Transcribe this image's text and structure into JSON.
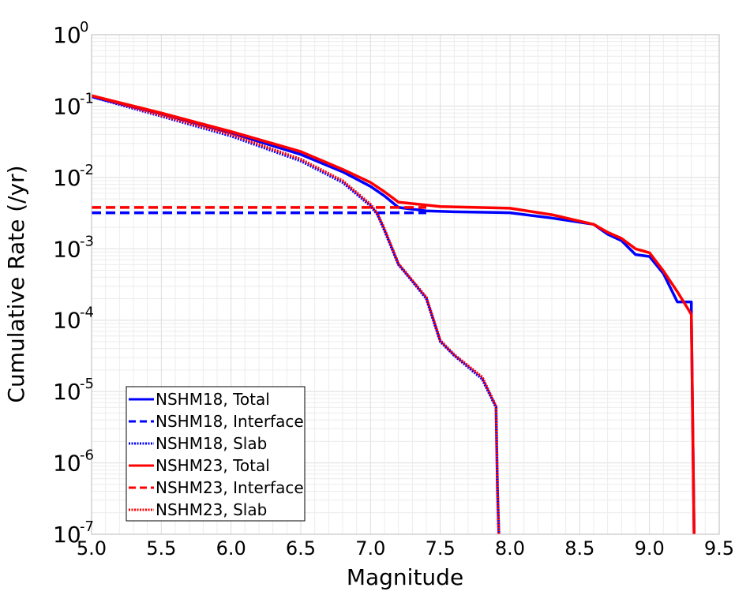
{
  "chart_data": {
    "type": "line",
    "title": "",
    "xlabel": "Magnitude",
    "ylabel": "Cumulative Rate (/yr)",
    "xlim": [
      5.0,
      9.5
    ],
    "ylim": [
      1e-07,
      1
    ],
    "yscale": "log",
    "grid": true,
    "legend_position": "bottom-left",
    "x_ticks": [
      "5.0",
      "5.5",
      "6.0",
      "6.5",
      "7.0",
      "7.5",
      "8.0",
      "8.5",
      "9.0",
      "9.5"
    ],
    "y_ticks": [
      {
        "base": "10",
        "exp": "0"
      },
      {
        "base": "10",
        "exp": "-1"
      },
      {
        "base": "10",
        "exp": "-2"
      },
      {
        "base": "10",
        "exp": "-3"
      },
      {
        "base": "10",
        "exp": "-4"
      },
      {
        "base": "10",
        "exp": "-5"
      },
      {
        "base": "10",
        "exp": "-6"
      },
      {
        "base": "10",
        "exp": "-7"
      }
    ],
    "series": [
      {
        "name": "NSHM18, Total",
        "color": "#0000ff",
        "style": "solid",
        "x": [
          5.0,
          5.5,
          6.0,
          6.5,
          6.8,
          7.0,
          7.1,
          7.2,
          7.4,
          7.6,
          8.0,
          8.3,
          8.6,
          8.7,
          8.8,
          8.9,
          9.0,
          9.1,
          9.2,
          9.3,
          9.3,
          9.32
        ],
        "y": [
          0.135,
          0.078,
          0.042,
          0.021,
          0.012,
          0.0075,
          0.0055,
          0.0038,
          0.0034,
          0.0033,
          0.0032,
          0.0027,
          0.0022,
          0.0016,
          0.0013,
          0.00083,
          0.00078,
          0.00045,
          0.00018,
          0.00018,
          0.00012,
          1e-07
        ]
      },
      {
        "name": "NSHM18, Interface",
        "color": "#0000ff",
        "style": "dashed",
        "x": [
          5.0,
          7.4
        ],
        "y": [
          0.0032,
          0.0032
        ]
      },
      {
        "name": "NSHM18, Slab",
        "color": "#0000ff",
        "style": "dotted",
        "x": [
          5.0,
          5.5,
          6.0,
          6.5,
          6.8,
          7.0,
          7.05,
          7.1,
          7.2,
          7.3,
          7.4,
          7.5,
          7.6,
          7.8,
          7.9,
          7.91,
          7.92
        ],
        "y": [
          0.135,
          0.072,
          0.038,
          0.017,
          0.0085,
          0.004,
          0.003,
          0.0018,
          0.0006,
          0.00035,
          0.0002,
          5e-05,
          3.2e-05,
          1.5e-05,
          6e-06,
          4.5e-07,
          1e-07
        ]
      },
      {
        "name": "NSHM23, Total",
        "color": "#ff0000",
        "style": "solid",
        "x": [
          5.0,
          5.5,
          6.0,
          6.5,
          6.8,
          7.0,
          7.1,
          7.2,
          7.4,
          7.5,
          8.0,
          8.3,
          8.6,
          8.7,
          8.8,
          8.9,
          9.0,
          9.1,
          9.2,
          9.28,
          9.3,
          9.32
        ],
        "y": [
          0.14,
          0.08,
          0.044,
          0.023,
          0.013,
          0.0085,
          0.0063,
          0.0045,
          0.0041,
          0.0039,
          0.0037,
          0.003,
          0.0022,
          0.0017,
          0.0014,
          0.001,
          0.00088,
          0.00049,
          0.00025,
          0.00014,
          0.00012,
          1e-07
        ]
      },
      {
        "name": "NSHM23, Interface",
        "color": "#ff0000",
        "style": "dashed",
        "x": [
          5.0,
          7.4
        ],
        "y": [
          0.0038,
          0.0038
        ]
      },
      {
        "name": "NSHM23, Slab",
        "color": "#ff0000",
        "style": "dotted",
        "x": [
          5.0,
          5.5,
          6.0,
          6.5,
          6.8,
          7.0,
          7.05,
          7.1,
          7.2,
          7.3,
          7.4,
          7.5,
          7.6,
          7.8,
          7.9,
          7.91,
          7.92
        ],
        "y": [
          0.14,
          0.074,
          0.04,
          0.018,
          0.009,
          0.0042,
          0.0031,
          0.0019,
          0.00062,
          0.00036,
          0.00021,
          5.2e-05,
          3.3e-05,
          1.6e-05,
          6.2e-06,
          4.5e-07,
          1e-07
        ]
      }
    ]
  }
}
